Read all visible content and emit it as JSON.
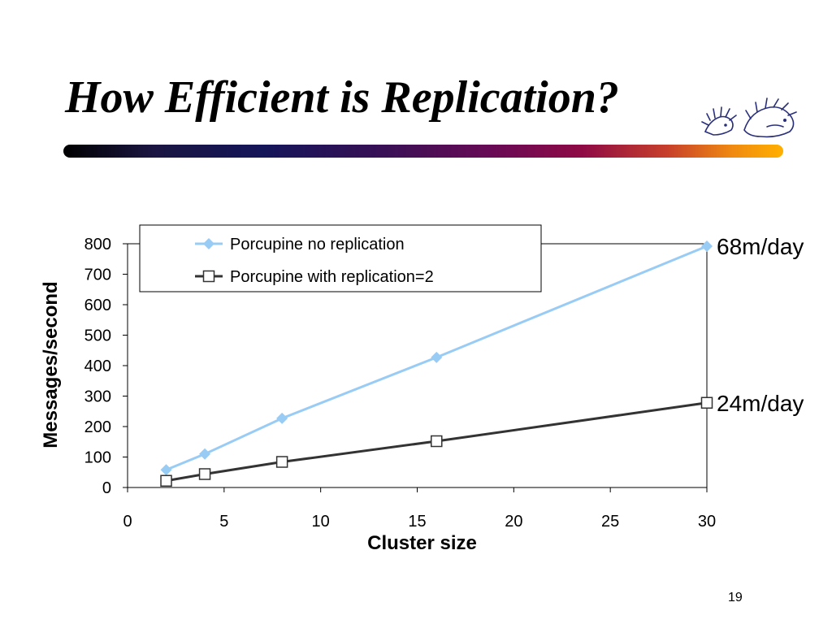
{
  "slide": {
    "title": "How Efficient is Replication?",
    "page_number": "19"
  },
  "colors": {
    "series_no_replication": "#99ccf5",
    "series_with_replication": "#333333",
    "text": "#000000"
  },
  "chart_data": {
    "type": "line",
    "title": "",
    "xlabel": "Cluster size",
    "ylabel": "Messages/second",
    "xlim": [
      0,
      30
    ],
    "ylim": [
      0,
      800
    ],
    "xticks": [
      0,
      5,
      10,
      15,
      20,
      25,
      30
    ],
    "yticks": [
      0,
      100,
      200,
      300,
      400,
      500,
      600,
      700,
      800
    ],
    "grid": false,
    "legend": "top",
    "series": [
      {
        "name": "Porcupine no replication",
        "marker": "diamond",
        "x": [
          2,
          4,
          8,
          16,
          30
        ],
        "y": [
          58,
          110,
          227,
          427,
          792
        ],
        "end_label": "68m/day"
      },
      {
        "name": "Porcupine with replication=2",
        "marker": "square",
        "x": [
          2,
          4,
          8,
          16,
          30
        ],
        "y": [
          22,
          44,
          84,
          152,
          278
        ],
        "end_label": "24m/day"
      }
    ]
  }
}
